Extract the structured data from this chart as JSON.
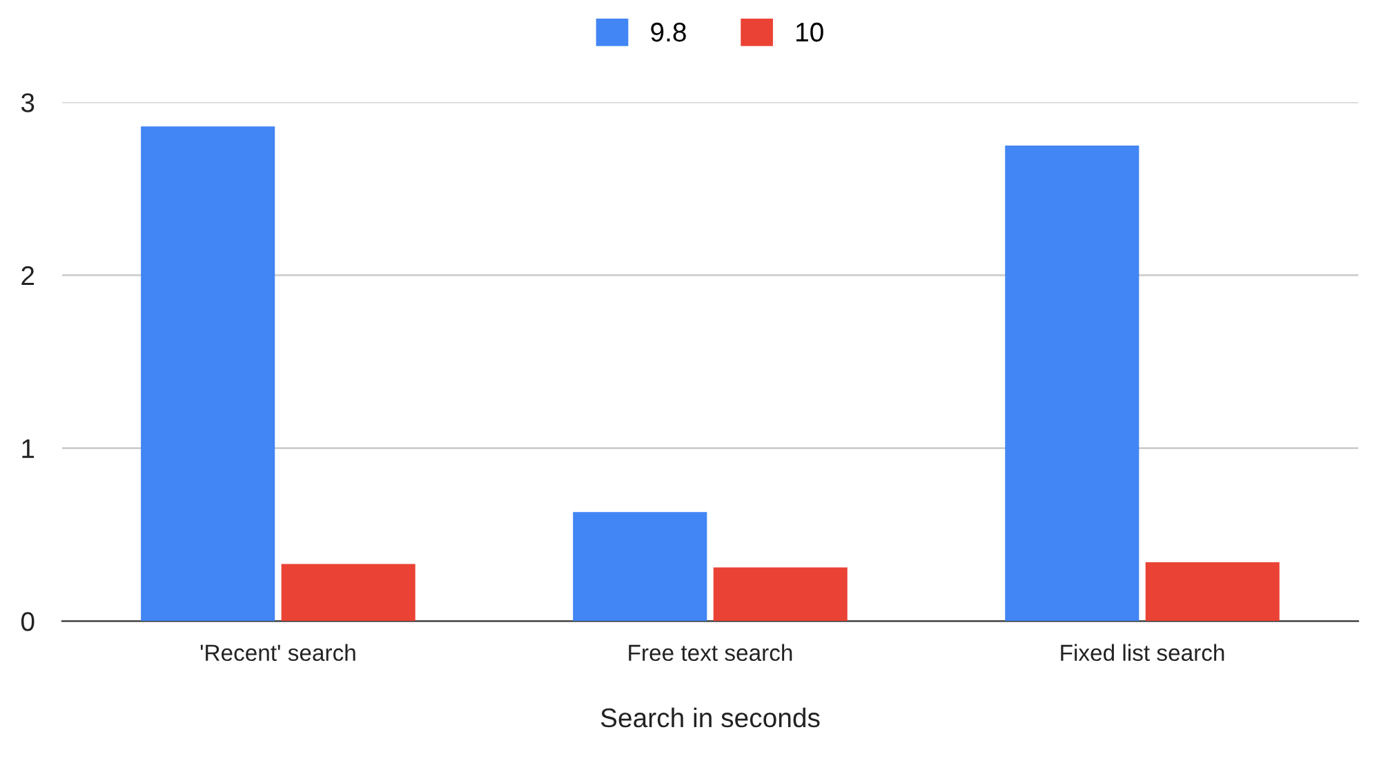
{
  "chart_data": {
    "type": "bar",
    "xlabel": "Search in seconds",
    "categories": [
      "'Recent' search",
      "Free text search",
      "Fixed list search"
    ],
    "series": [
      {
        "name": "9.8",
        "color": "#4285f4",
        "values": [
          2.86,
          0.63,
          2.75
        ]
      },
      {
        "name": "10",
        "color": "#ea4335",
        "values": [
          0.33,
          0.31,
          0.34
        ]
      }
    ],
    "ylim": [
      0,
      3
    ],
    "yticks": [
      0,
      1,
      2,
      3
    ],
    "grid": "y",
    "legend": "top"
  }
}
